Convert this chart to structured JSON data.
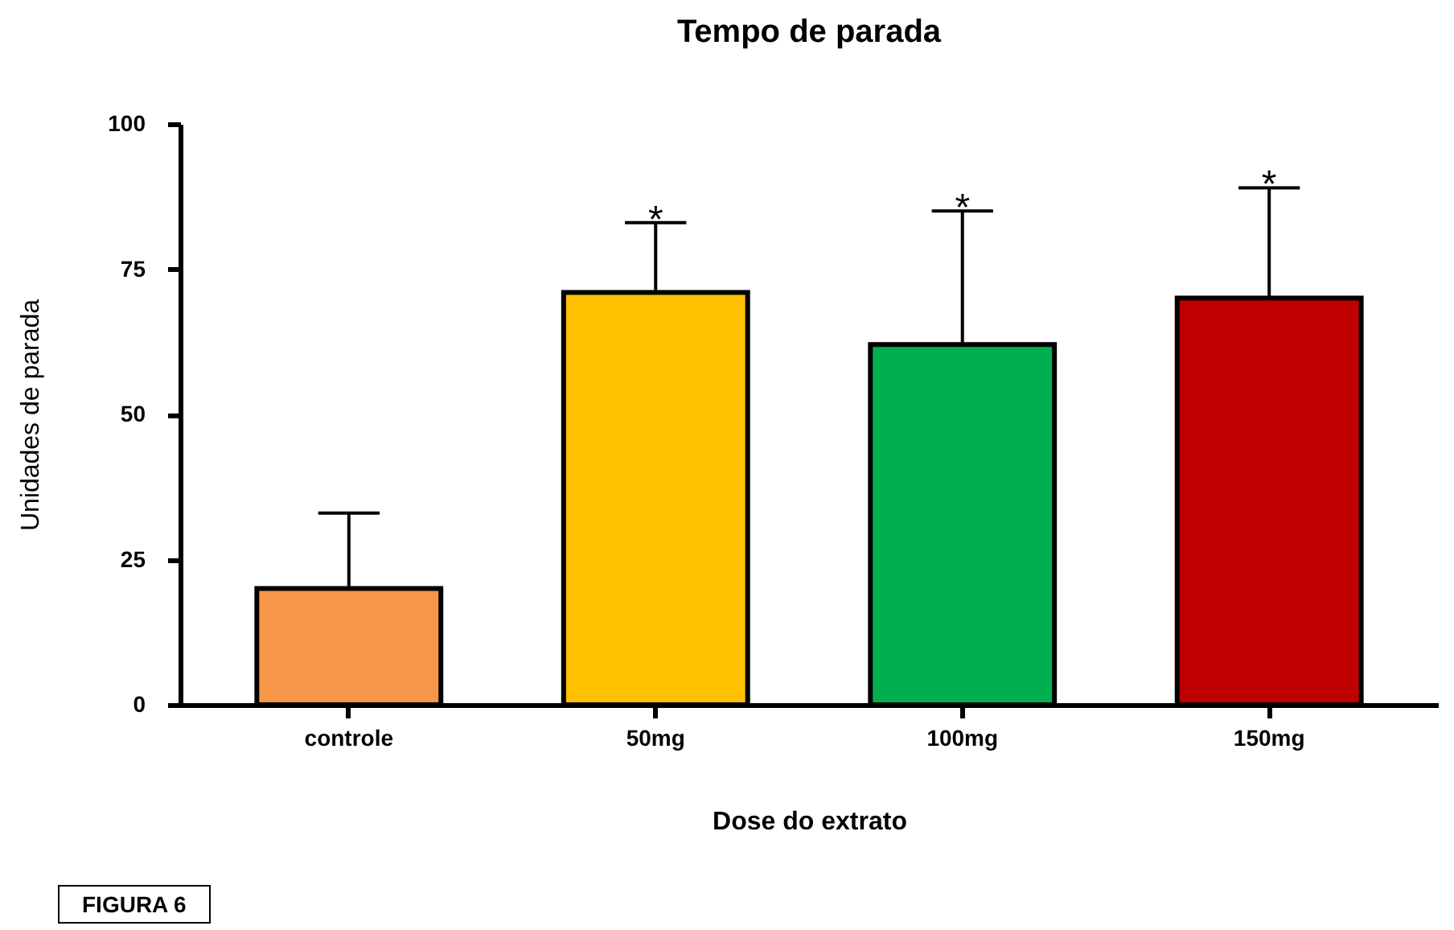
{
  "chart_data": {
    "type": "bar",
    "title": "Tempo de parada",
    "xlabel": "Dose do extrato",
    "ylabel": "Unidades de parada",
    "categories": [
      "controle",
      "50mg",
      "100mg",
      "150mg"
    ],
    "values": [
      20,
      71,
      62,
      70
    ],
    "errors": [
      13,
      12,
      23,
      19
    ],
    "colors": [
      "#f79646",
      "#ffc000",
      "#00b050",
      "#c00000"
    ],
    "ylim": [
      0,
      100
    ],
    "yticks": [
      0,
      25,
      50,
      75,
      100
    ],
    "grid": false,
    "legend": false,
    "value_labels": [
      null,
      "*",
      "*",
      "*"
    ],
    "annotations": [
      "FIGURA 6"
    ]
  }
}
